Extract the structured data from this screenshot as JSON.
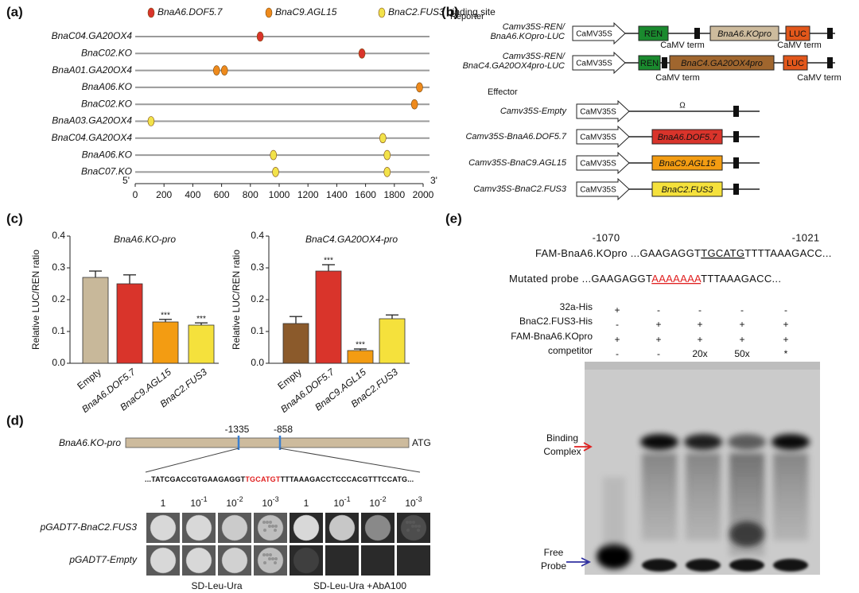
{
  "panel_labels": [
    "(a)",
    "(b)",
    "(c)",
    "(d)",
    "(e)"
  ],
  "chart_data": [
    {
      "type": "dot",
      "categories": [
        "BnaC04.GA20OX4",
        "BnaC02.KO",
        "BnaA01.GA20OX4",
        "BnaA06.KO",
        "BnaC02.KO",
        "BnaA03.GA20OX4",
        "BnaC04.GA20OX4",
        "BnaA06.KO",
        "BnaC07.KO"
      ],
      "series": [
        {
          "name": "BnaA6.DOF5.7",
          "color": "#d9342b",
          "values": [
            [
              868
            ],
            [
              1575
            ],
            null,
            null,
            null,
            null,
            null,
            null,
            null
          ]
        },
        {
          "name": "BnaC9.AGL15",
          "color": "#ee8a1c",
          "values": [
            null,
            null,
            [
              565,
              620
            ],
            [
              1975
            ],
            [
              1940
            ],
            null,
            null,
            null,
            null
          ]
        },
        {
          "name": "BnaC2.FUS3",
          "color": "#f2e24a",
          "values": [
            null,
            null,
            null,
            null,
            null,
            [
              110
            ],
            [
              1720
            ],
            [
              960,
              1750
            ],
            [
              975,
              1750
            ]
          ]
        }
      ],
      "legend_note": " binding site",
      "end_labels": [
        "5'",
        "3'"
      ],
      "xlim": [
        0,
        2000
      ],
      "xticks": [
        0,
        200,
        400,
        600,
        800,
        1000,
        1200,
        1400,
        1600,
        1800,
        2000
      ]
    },
    {
      "type": "bar",
      "title": "BnaA6.KO-pro",
      "ylabel": "Relative LUC/REN ratio",
      "categories": [
        "Empty",
        "BnaA6.DOF5.7",
        "BnaC9.AGL15",
        "BnaC2.FUS3"
      ],
      "values": [
        0.27,
        0.25,
        0.13,
        0.12
      ],
      "errors": [
        0.02,
        0.028,
        0.008,
        0.007
      ],
      "colors": [
        "#c8b89a",
        "#d9342b",
        "#f39c12",
        "#f5e13c"
      ],
      "annotations": [
        null,
        null,
        "***",
        "***"
      ],
      "ylim": [
        0,
        0.4
      ],
      "yticks": [
        {
          "value": 0,
          "label": "0.0"
        },
        0.1,
        0.2,
        0.3,
        0.4
      ]
    },
    {
      "type": "bar",
      "title": "BnaC4.GA20OX4-pro",
      "ylabel": "Relative LUC/REN ratio",
      "categories": [
        "Empty",
        "BnaA6.DOF5.7",
        "BnaC9.AGL15",
        "BnaC2.FUS3"
      ],
      "values": [
        0.125,
        0.29,
        0.04,
        0.14
      ],
      "errors": [
        0.022,
        0.02,
        0.005,
        0.012
      ],
      "colors": [
        "#8b5a2b",
        "#d9342b",
        "#f39c12",
        "#f5e13c"
      ],
      "annotations": [
        null,
        "***",
        "***",
        null
      ],
      "ylim": [
        0,
        0.4
      ],
      "yticks": [
        {
          "value": 0,
          "label": "0.0"
        },
        0.1,
        0.2,
        0.3,
        0.4
      ]
    }
  ],
  "construct_panel": {
    "reporter_heading": "Reporter",
    "reporters": [
      {
        "label": [
          "Camv35S-REN/",
          "BnaA6.KOpro-LUC"
        ],
        "promoter": "CaMV35S",
        "parts": [
          "REN",
          "BnaA6.KOpro",
          "LUC"
        ],
        "terms": [
          "CaMV term",
          "CaMV term"
        ]
      },
      {
        "label": [
          "Camv35S-REN/",
          "BnaC4.GA20OX4pro-LUC"
        ],
        "promoter": "CaMV35S",
        "parts": [
          "REN",
          "BnaC4.GA20OX4pro",
          "LUC"
        ],
        "terms": [
          "CaMV term",
          "CaMV term"
        ]
      }
    ],
    "effector_heading": "Effector",
    "effectors": [
      {
        "label": "Camv35S-Empty",
        "promoter": "CaMV35S",
        "insert": "Ω"
      },
      {
        "label": "Camv35S-BnaA6.DOF5.7",
        "promoter": "CaMV35S",
        "insert": "BnaA6.DOF5.7"
      },
      {
        "label": "Camv35S-BnaC9.AGL15",
        "promoter": "CaMV35S",
        "insert": "BnaC9.AGL15"
      },
      {
        "label": "Camv35S-BnaC2.FUS3",
        "promoter": "CaMV35S",
        "insert": "BnaC2.FUS3"
      }
    ]
  },
  "yeast_panel": {
    "promoter": "BnaA6.KO-pro",
    "positions": [
      "-1335",
      "-858"
    ],
    "end": "ATG",
    "sequence": [
      "...TATCGACCGTGAAGAGGT",
      "TGCATGT",
      "TTTAAAGACCTCCCACGTTTCCATG..."
    ],
    "dilutions": [
      {
        "base": "1"
      },
      {
        "base": "10",
        "exp": "-1"
      },
      {
        "base": "10",
        "exp": "-2"
      },
      {
        "base": "10",
        "exp": "-3"
      }
    ],
    "rows": [
      "pGADT7-BnaC2.FUS3",
      "pGADT7-Empty"
    ],
    "media": [
      "SD-Leu-Ura",
      "SD-Leu-Ura +AbA100"
    ]
  },
  "emsa_panel": {
    "positions": [
      "-1070",
      "-1021"
    ],
    "probes": [
      {
        "name": "FAM-BnaA6.KOpro",
        "sequence": [
          "...GAAGAGGT",
          "TGCATG",
          "TTTTAAAGACC..."
        ]
      },
      {
        "name": "Mutated probe",
        "sequence": [
          "...GAAGAGGT",
          "AAAAAAA",
          "TTTAAAGACC..."
        ]
      }
    ],
    "conditions": [
      {
        "label": "32a-His",
        "lanes": [
          "+",
          "-",
          "-",
          "-",
          "-"
        ]
      },
      {
        "label": "BnaC2.FUS3-His",
        "lanes": [
          "-",
          "+",
          "+",
          "+",
          "+"
        ]
      },
      {
        "label": "FAM-BnaA6.KOpro",
        "lanes": [
          "+",
          "+",
          "+",
          "+",
          "+"
        ]
      },
      {
        "label": "competitor",
        "lanes": [
          "-",
          "-",
          "20x",
          "50x",
          "*"
        ]
      }
    ],
    "binding_label": [
      "Binding",
      "Complex"
    ],
    "free_label": [
      "Free",
      "Probe"
    ]
  }
}
